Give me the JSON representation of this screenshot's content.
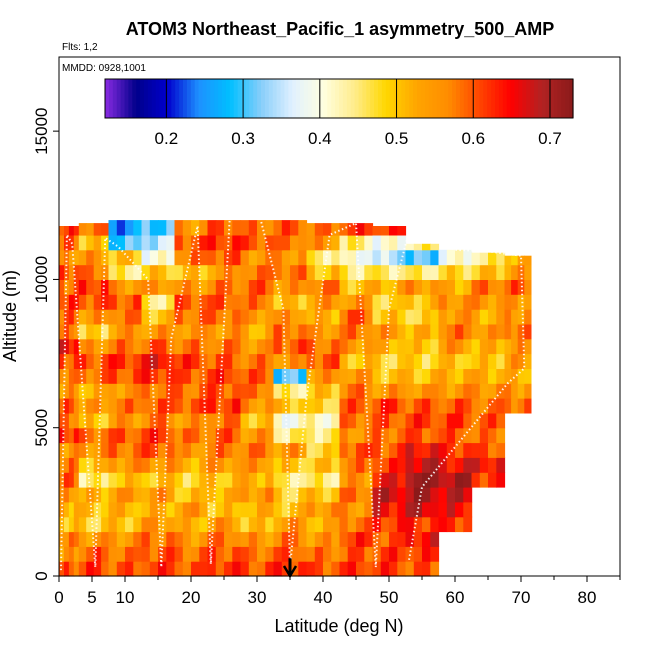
{
  "chart_data": {
    "type": "heatmap",
    "title": "ATOM3 Northeast_Pacific_1 asymmetry_500_AMP",
    "flights_label": "Flts: 1,2",
    "dates_label": "MMDD: 0928,1001",
    "xlabel": "Latitude (deg N)",
    "ylabel": "Altitude (m)",
    "xlim": [
      0,
      85
    ],
    "ylim": [
      0,
      17500
    ],
    "x_ticks": [
      0,
      5,
      10,
      20,
      30,
      40,
      50,
      60,
      70,
      80
    ],
    "y_ticks": [
      0,
      5000,
      10000,
      15000
    ],
    "grid": false,
    "colorbar": {
      "range": [
        0.12,
        0.73
      ],
      "ticks": [
        0.2,
        0.3,
        0.4,
        0.5,
        0.6,
        0.7
      ],
      "placement": "top-inside",
      "colors": [
        "#8a2be2",
        "#00008b",
        "#0000cd",
        "#1e90ff",
        "#00bfff",
        "#87cefa",
        "#e0f0ff",
        "#ffffe0",
        "#ffec8b",
        "#ffd700",
        "#ffa500",
        "#ff8c00",
        "#ff4500",
        "#ff0000",
        "#b22222",
        "#8b1a1a"
      ]
    },
    "annotation": {
      "type": "arrow",
      "x": 35,
      "y_top": 600,
      "y_bottom": 0
    },
    "column_profiles": [
      {
        "lat": 1,
        "values": [
          0.6,
          0.55,
          0.57,
          0.5,
          0.52,
          0.55,
          0.6,
          0.58,
          0.55,
          0.62,
          0.58,
          0.6,
          0.55,
          0.57,
          0.6,
          0.65,
          0.58,
          0.6,
          0.62,
          0.58,
          0.6,
          0.55,
          0.6,
          0.62
        ],
        "top": 11800
      },
      {
        "lat": 5,
        "values": [
          0.62,
          0.6,
          0.55,
          0.48,
          0.5,
          0.52,
          0.45,
          0.5,
          0.55,
          0.58,
          0.5,
          0.55,
          0.52,
          0.58,
          0.6,
          0.55,
          0.48,
          0.55,
          0.6,
          0.62,
          0.58,
          0.55,
          0.5,
          0.58
        ],
        "top": 11900
      },
      {
        "lat": 10,
        "values": [
          0.6,
          0.58,
          0.55,
          0.5,
          0.52,
          0.55,
          0.5,
          0.55,
          0.58,
          0.6,
          0.55,
          0.58,
          0.55,
          0.6,
          0.62,
          0.58,
          0.55,
          0.58,
          0.6,
          0.55,
          0.45,
          0.5,
          0.3,
          0.25
        ],
        "top": 12400
      },
      {
        "lat": 15,
        "values": [
          0.62,
          0.6,
          0.58,
          0.55,
          0.52,
          0.55,
          0.5,
          0.55,
          0.6,
          0.62,
          0.58,
          0.6,
          0.58,
          0.62,
          0.65,
          0.6,
          0.55,
          0.5,
          0.45,
          0.55,
          0.5,
          0.4,
          0.35,
          0.3
        ],
        "top": 12400
      },
      {
        "lat": 20,
        "values": [
          0.6,
          0.58,
          0.55,
          0.52,
          0.55,
          0.5,
          0.48,
          0.52,
          0.55,
          0.58,
          0.55,
          0.6,
          0.58,
          0.6,
          0.62,
          0.58,
          0.55,
          0.58,
          0.6,
          0.55,
          0.5,
          0.58,
          0.6,
          0.55
        ],
        "top": 12900
      },
      {
        "lat": 25,
        "values": [
          0.62,
          0.6,
          0.58,
          0.55,
          0.5,
          0.52,
          0.5,
          0.55,
          0.58,
          0.6,
          0.58,
          0.62,
          0.6,
          0.62,
          0.6,
          0.58,
          0.55,
          0.58,
          0.6,
          0.58,
          0.55,
          0.6,
          0.62,
          0.6
        ],
        "top": 12900
      },
      {
        "lat": 30,
        "values": [
          0.6,
          0.58,
          0.55,
          0.5,
          0.52,
          0.55,
          0.52,
          0.55,
          0.58,
          0.55,
          0.5,
          0.55,
          0.58,
          0.6,
          0.58,
          0.55,
          0.52,
          0.55,
          0.58,
          0.6,
          0.58,
          0.55,
          0.6,
          0.58
        ],
        "top": 12500
      },
      {
        "lat": 35,
        "values": [
          0.62,
          0.6,
          0.58,
          0.55,
          0.5,
          0.48,
          0.45,
          0.5,
          0.55,
          0.45,
          0.4,
          0.5,
          0.45,
          0.3,
          0.55,
          0.6,
          0.58,
          0.55,
          0.5,
          0.55,
          0.58,
          0.55,
          0.58,
          0.6
        ],
        "top": 12000
      },
      {
        "lat": 40,
        "values": [
          0.6,
          0.58,
          0.55,
          0.52,
          0.55,
          0.5,
          0.45,
          0.5,
          0.48,
          0.45,
          0.42,
          0.48,
          0.5,
          0.55,
          0.6,
          0.58,
          0.55,
          0.52,
          0.55,
          0.58,
          0.5,
          0.45,
          0.55,
          0.58
        ],
        "top": 11900
      },
      {
        "lat": 45,
        "values": [
          0.62,
          0.6,
          0.62,
          0.58,
          0.55,
          0.58,
          0.55,
          0.58,
          0.6,
          0.55,
          0.58,
          0.6,
          0.58,
          0.55,
          0.5,
          0.55,
          0.58,
          0.6,
          0.55,
          0.5,
          0.45,
          0.4,
          0.45,
          0.62
        ],
        "top": 11900
      },
      {
        "lat": 50,
        "values": [
          0.62,
          0.62,
          0.6,
          0.62,
          0.65,
          0.68,
          0.65,
          0.62,
          0.6,
          0.58,
          0.6,
          0.62,
          0.55,
          0.5,
          0.48,
          0.52,
          0.55,
          0.5,
          0.48,
          0.52,
          0.45,
          0.35,
          0.4,
          0.62
        ],
        "top": 11800
      },
      {
        "lat": 55,
        "values": [
          0.6,
          0.62,
          0.65,
          0.62,
          0.68,
          0.7,
          0.72,
          0.68,
          0.65,
          0.6,
          0.62,
          0.6,
          0.55,
          0.5,
          0.48,
          0.5,
          0.52,
          0.48,
          0.5,
          0.55,
          0.45,
          0.3,
          0.45
        ],
        "top": 11200
      },
      {
        "lat": 60,
        "values": [
          null,
          null,
          null,
          0.62,
          0.65,
          0.68,
          0.7,
          0.65,
          0.62,
          0.6,
          0.62,
          0.6,
          0.55,
          0.52,
          0.5,
          0.55,
          0.58,
          0.55,
          0.55,
          0.52,
          0.48,
          0.4,
          0.45
        ],
        "top": 11000
      },
      {
        "lat": 65,
        "values": [
          null,
          null,
          null,
          null,
          null,
          null,
          0.62,
          0.65,
          0.6,
          0.58,
          0.6,
          0.58,
          0.55,
          0.52,
          0.5,
          0.52,
          0.55,
          0.52,
          0.55,
          0.58,
          0.5,
          0.45,
          0.5
        ],
        "top": 10900
      },
      {
        "lat": 70,
        "values": [
          null,
          null,
          null,
          null,
          null,
          null,
          null,
          null,
          null,
          null,
          null,
          0.58,
          0.55,
          0.52,
          0.55,
          0.55,
          0.58,
          0.55,
          0.55,
          0.6,
          0.55,
          0.52,
          0.55
        ],
        "top": 10800
      }
    ]
  }
}
